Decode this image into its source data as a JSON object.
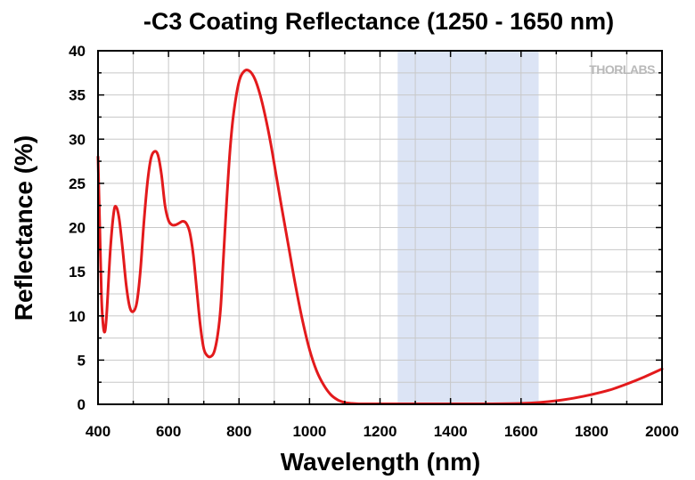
{
  "chart_data": {
    "type": "line",
    "title": "-C3 Coating Reflectance (1250 - 1650 nm)",
    "xlabel": "Wavelength (nm)",
    "ylabel": "Reflectance (%)",
    "xlim": [
      400,
      2000
    ],
    "ylim": [
      0,
      40
    ],
    "xticks": [
      "400",
      "600",
      "800",
      "1000",
      "1200",
      "1400",
      "1600",
      "1800",
      "2000"
    ],
    "yticks": [
      "0",
      "5",
      "10",
      "15",
      "20",
      "25",
      "30",
      "35",
      "40"
    ],
    "grid": true,
    "shaded_band": {
      "x_start": 1250,
      "x_end": 1650,
      "color": "#dce4f5"
    },
    "series": [
      {
        "color": "#e31a1c",
        "x": [
          400,
          405,
          410,
          415,
          420,
          425,
          435,
          445,
          452,
          460,
          470,
          480,
          490,
          500,
          510,
          520,
          530,
          540,
          550,
          560,
          570,
          580,
          590,
          600,
          610,
          620,
          630,
          640,
          650,
          660,
          670,
          680,
          690,
          700,
          710,
          720,
          730,
          740,
          748,
          755,
          765,
          775,
          785,
          800,
          815,
          830,
          845,
          860,
          875,
          890,
          905,
          920,
          940,
          960,
          980,
          1000,
          1020,
          1040,
          1060,
          1080,
          1100,
          1120,
          1140,
          1160,
          1180,
          1200,
          1230,
          1260,
          1300,
          1400,
          1500,
          1600,
          1650,
          1700,
          1750,
          1800,
          1850,
          1900,
          1950,
          2000
        ],
        "y": [
          28.0,
          20.0,
          12.0,
          8.8,
          8.3,
          10.5,
          17.5,
          21.8,
          22.3,
          21.0,
          17.5,
          13.5,
          11.0,
          10.5,
          11.5,
          15.0,
          20.5,
          25.0,
          27.8,
          28.6,
          28.2,
          26.0,
          22.5,
          20.8,
          20.3,
          20.3,
          20.5,
          20.7,
          20.5,
          19.5,
          17.0,
          13.0,
          9.0,
          6.3,
          5.5,
          5.4,
          6.0,
          8.0,
          11.0,
          16.0,
          23.0,
          29.0,
          33.0,
          36.5,
          37.7,
          37.7,
          36.8,
          35.0,
          32.5,
          29.5,
          26.0,
          22.5,
          18.0,
          13.5,
          9.5,
          6.2,
          3.8,
          2.2,
          1.1,
          0.5,
          0.2,
          0.1,
          0.05,
          0.05,
          0.05,
          0.05,
          0.05,
          0.05,
          0.05,
          0.05,
          0.05,
          0.1,
          0.2,
          0.4,
          0.7,
          1.1,
          1.6,
          2.3,
          3.1,
          4.0
        ]
      }
    ],
    "watermark": "THORLABS"
  }
}
